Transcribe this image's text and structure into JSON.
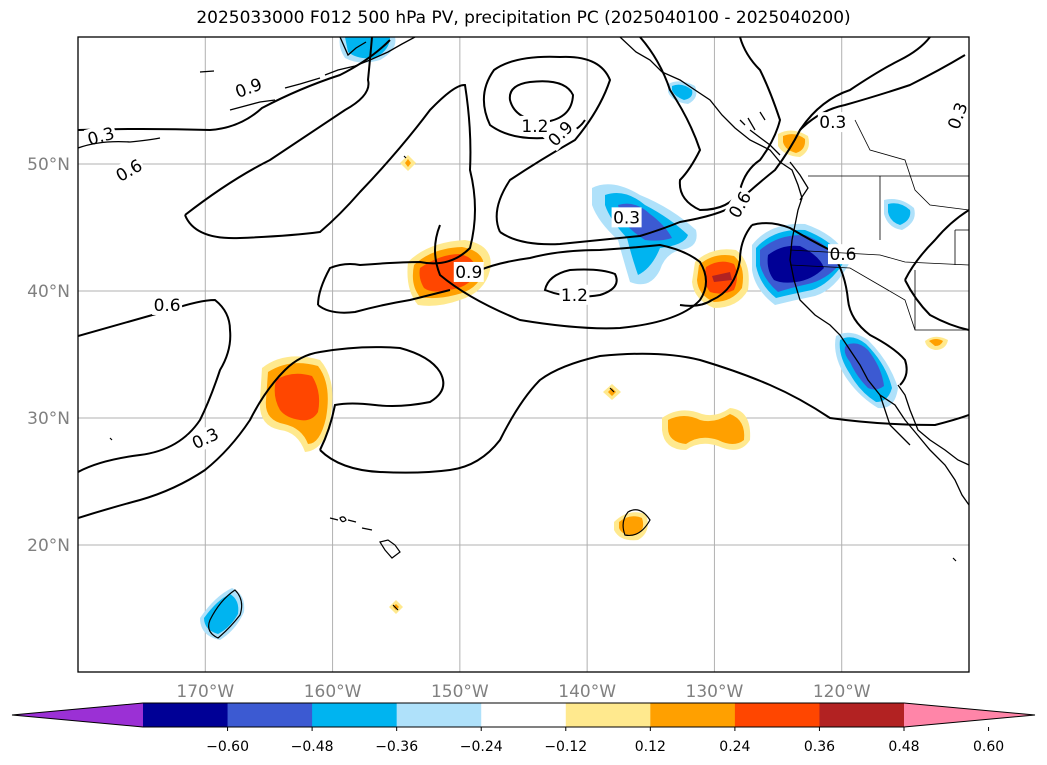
{
  "title": "2025033000 F012 500 hPa PV, precipitation PC (2025040100 - 2025040200)",
  "map": {
    "lon_range": [
      -180,
      -110
    ],
    "lat_range": [
      10,
      60
    ],
    "lon_ticks": [
      -170,
      -160,
      -150,
      -140,
      -130,
      -120
    ],
    "lat_ticks": [
      20,
      30,
      40,
      50
    ],
    "lon_tick_labels": [
      "170°W",
      "160°W",
      "150°W",
      "140°W",
      "130°W",
      "120°W"
    ],
    "lat_tick_labels": [
      "20°N",
      "30°N",
      "40°N",
      "50°N"
    ],
    "grid": true,
    "contour_labels": [
      {
        "text": "0.3",
        "lon": -178.2,
        "lat": 52.2,
        "rot": -15
      },
      {
        "text": "0.6",
        "lon": -176,
        "lat": 49.5,
        "rot": -30
      },
      {
        "text": "0.9",
        "lon": -166.6,
        "lat": 56.0,
        "rot": -20
      },
      {
        "text": "1.2",
        "lon": -144.1,
        "lat": 53.0,
        "rot": 0
      },
      {
        "text": "0.9",
        "lon": -142.1,
        "lat": 52.4,
        "rot": -45
      },
      {
        "text": "0.3",
        "lon": -136.9,
        "lat": 45.8,
        "rot": 0
      },
      {
        "text": "0.6",
        "lon": -128.0,
        "lat": 46.8,
        "rot": -60
      },
      {
        "text": "0.3",
        "lon": -120.7,
        "lat": 53.3,
        "rot": 0
      },
      {
        "text": "0.3",
        "lon": -110.9,
        "lat": 53.8,
        "rot": -70
      },
      {
        "text": "0.6",
        "lon": -119.9,
        "lat": 42.9,
        "rot": 0
      },
      {
        "text": "0.9",
        "lon": -149.3,
        "lat": 41.5,
        "rot": 0
      },
      {
        "text": "1.2",
        "lon": -141.0,
        "lat": 39.7,
        "rot": 0
      },
      {
        "text": "0.6",
        "lon": -173.0,
        "lat": 38.9,
        "rot": 0
      },
      {
        "text": "0.3",
        "lon": -170.0,
        "lat": 28.4,
        "rot": -25
      }
    ]
  },
  "colorbar": {
    "colors": [
      "#9b30d5",
      "#000096",
      "#3c5ad2",
      "#00b4f0",
      "#afe1fa",
      "#ffffff",
      "#ffe98e",
      "#ffa000",
      "#ff4600",
      "#b22222",
      "#ff85a8"
    ],
    "ticks": [
      "−0.60",
      "−0.48",
      "−0.36",
      "−0.24",
      "−0.12",
      "0.12",
      "0.24",
      "0.36",
      "0.48",
      "0.60"
    ]
  }
}
